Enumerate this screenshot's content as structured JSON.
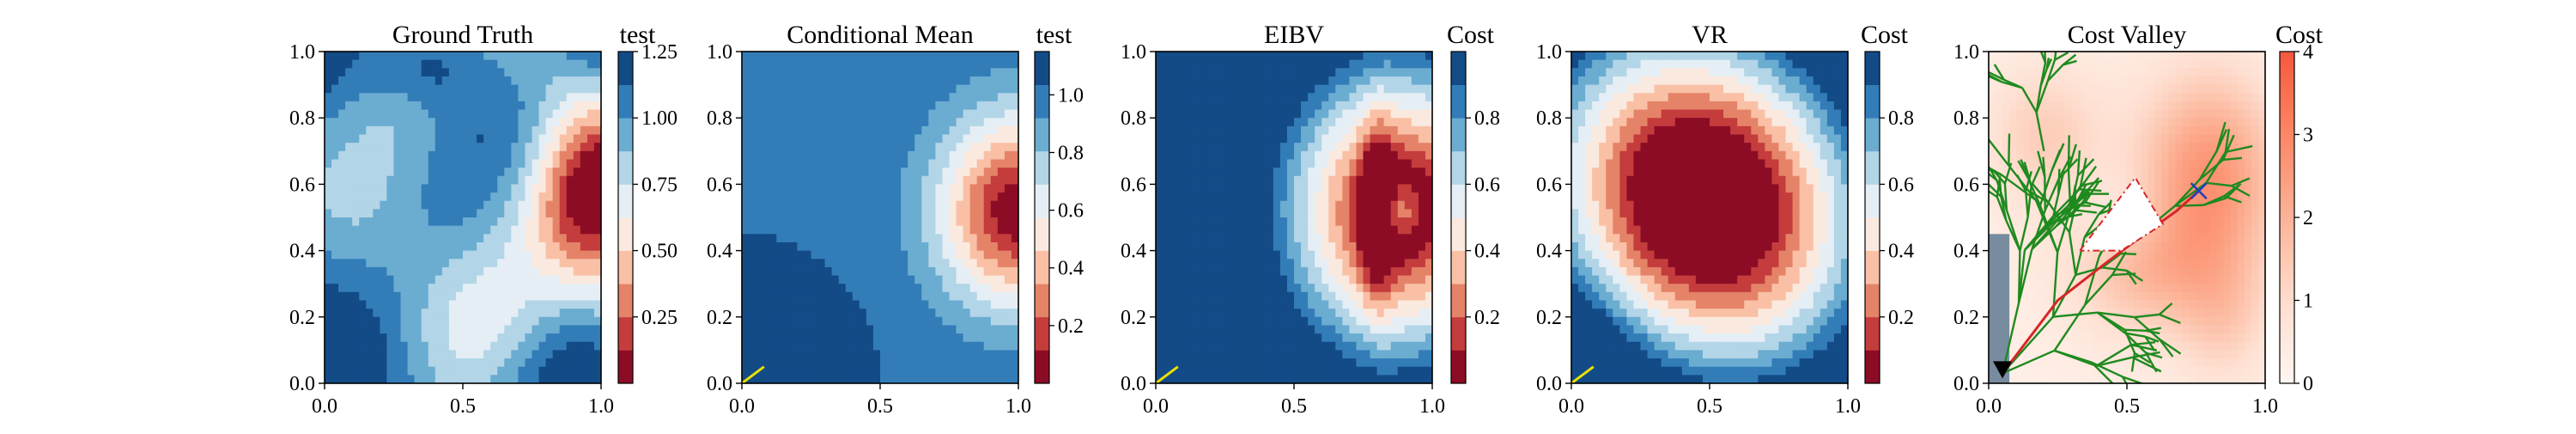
{
  "figure": {
    "panels": [
      {
        "title": "Ground Truth",
        "colorbar_label": "test"
      },
      {
        "title": "Conditional Mean",
        "colorbar_label": "test"
      },
      {
        "title": "EIBV",
        "colorbar_label": "Cost"
      },
      {
        "title": "VR",
        "colorbar_label": "Cost"
      },
      {
        "title": "Cost Valley",
        "colorbar_label": "Cost"
      }
    ]
  },
  "chart_data": [
    {
      "type": "heatmap",
      "title": "Ground Truth",
      "colorbar_label": "test",
      "colormap": "RdBu (discrete levels)",
      "xlim": [
        0.0,
        1.0
      ],
      "ylim": [
        0.0,
        1.0
      ],
      "x_ticks": [
        "0.0",
        "0.5",
        "1.0"
      ],
      "y_ticks": [
        "0.0",
        "0.2",
        "0.4",
        "0.6",
        "0.8",
        "1.0"
      ],
      "colorbar_ticks": [
        "0.25",
        "0.50",
        "0.75",
        "1.00",
        "1.25"
      ],
      "colorbar_range": [
        0.0,
        1.25
      ],
      "features": [
        {
          "kind": "low_region",
          "center": [
            0.97,
            0.55
          ],
          "min_value": 0.05
        }
      ]
    },
    {
      "type": "heatmap",
      "title": "Conditional Mean",
      "colorbar_label": "test",
      "colormap": "RdBu (discrete levels)",
      "xlim": [
        0.0,
        1.0
      ],
      "ylim": [
        0.0,
        1.0
      ],
      "x_ticks": [
        "0.0",
        "0.5",
        "1.0"
      ],
      "y_ticks": [
        "0.0",
        "0.2",
        "0.4",
        "0.6",
        "0.8",
        "1.0"
      ],
      "colorbar_ticks": [
        "0.2",
        "0.4",
        "0.6",
        "0.8",
        "1.0"
      ],
      "colorbar_range": [
        0.0,
        1.15
      ],
      "path": {
        "color": "#e8e000",
        "x": [
          0.0,
          0.08
        ],
        "y": [
          0.0,
          0.05
        ]
      }
    },
    {
      "type": "heatmap",
      "title": "EIBV",
      "colorbar_label": "Cost",
      "colormap": "RdBu (discrete levels)",
      "xlim": [
        0.0,
        1.0
      ],
      "ylim": [
        0.0,
        1.0
      ],
      "x_ticks": [
        "0.0",
        "0.5",
        "1.0"
      ],
      "y_ticks": [
        "0.0",
        "0.2",
        "0.4",
        "0.6",
        "0.8",
        "1.0"
      ],
      "colorbar_ticks": [
        "0.2",
        "0.4",
        "0.6",
        "0.8"
      ],
      "colorbar_range": [
        0.0,
        1.0
      ],
      "path": {
        "color": "#e8e000",
        "x": [
          0.0,
          0.08
        ],
        "y": [
          0.0,
          0.05
        ]
      }
    },
    {
      "type": "heatmap",
      "title": "VR",
      "colorbar_label": "Cost",
      "colormap": "RdBu (discrete levels)",
      "xlim": [
        0.0,
        1.0
      ],
      "ylim": [
        0.0,
        1.0
      ],
      "x_ticks": [
        "0.0",
        "0.5",
        "1.0"
      ],
      "y_ticks": [
        "0.0",
        "0.2",
        "0.4",
        "0.6",
        "0.8",
        "1.0"
      ],
      "colorbar_ticks": [
        "0.2",
        "0.4",
        "0.6",
        "0.8"
      ],
      "colorbar_range": [
        0.0,
        1.0
      ],
      "path": {
        "color": "#e8e000",
        "x": [
          0.0,
          0.08
        ],
        "y": [
          0.0,
          0.05
        ]
      }
    },
    {
      "type": "heatmap",
      "title": "Cost Valley",
      "colorbar_label": "Cost",
      "colormap": "Reds (continuous)",
      "xlim": [
        0.0,
        1.0
      ],
      "ylim": [
        0.0,
        1.0
      ],
      "x_ticks": [
        "0.0",
        "0.5",
        "1.0"
      ],
      "y_ticks": [
        "0.0",
        "0.2",
        "0.4",
        "0.6",
        "0.8",
        "1.0"
      ],
      "colorbar_ticks": [
        "0",
        "1",
        "2",
        "3",
        "4"
      ],
      "colorbar_range": [
        0.0,
        4.0
      ],
      "rrt_tree_color": "#1f8a1f",
      "planned_path_color": "#d62728",
      "obstacle_polygon": {
        "color": "#d62728",
        "x": [
          0.33,
          0.53,
          0.63,
          0.48,
          0.33
        ],
        "y": [
          0.4,
          0.62,
          0.48,
          0.4,
          0.4
        ]
      },
      "start": {
        "x": 0.05,
        "y": 0.03,
        "marker": "triangle-down"
      },
      "target": {
        "x": 0.76,
        "y": 0.58,
        "marker": "x",
        "color": "#1f3fbf"
      }
    }
  ]
}
